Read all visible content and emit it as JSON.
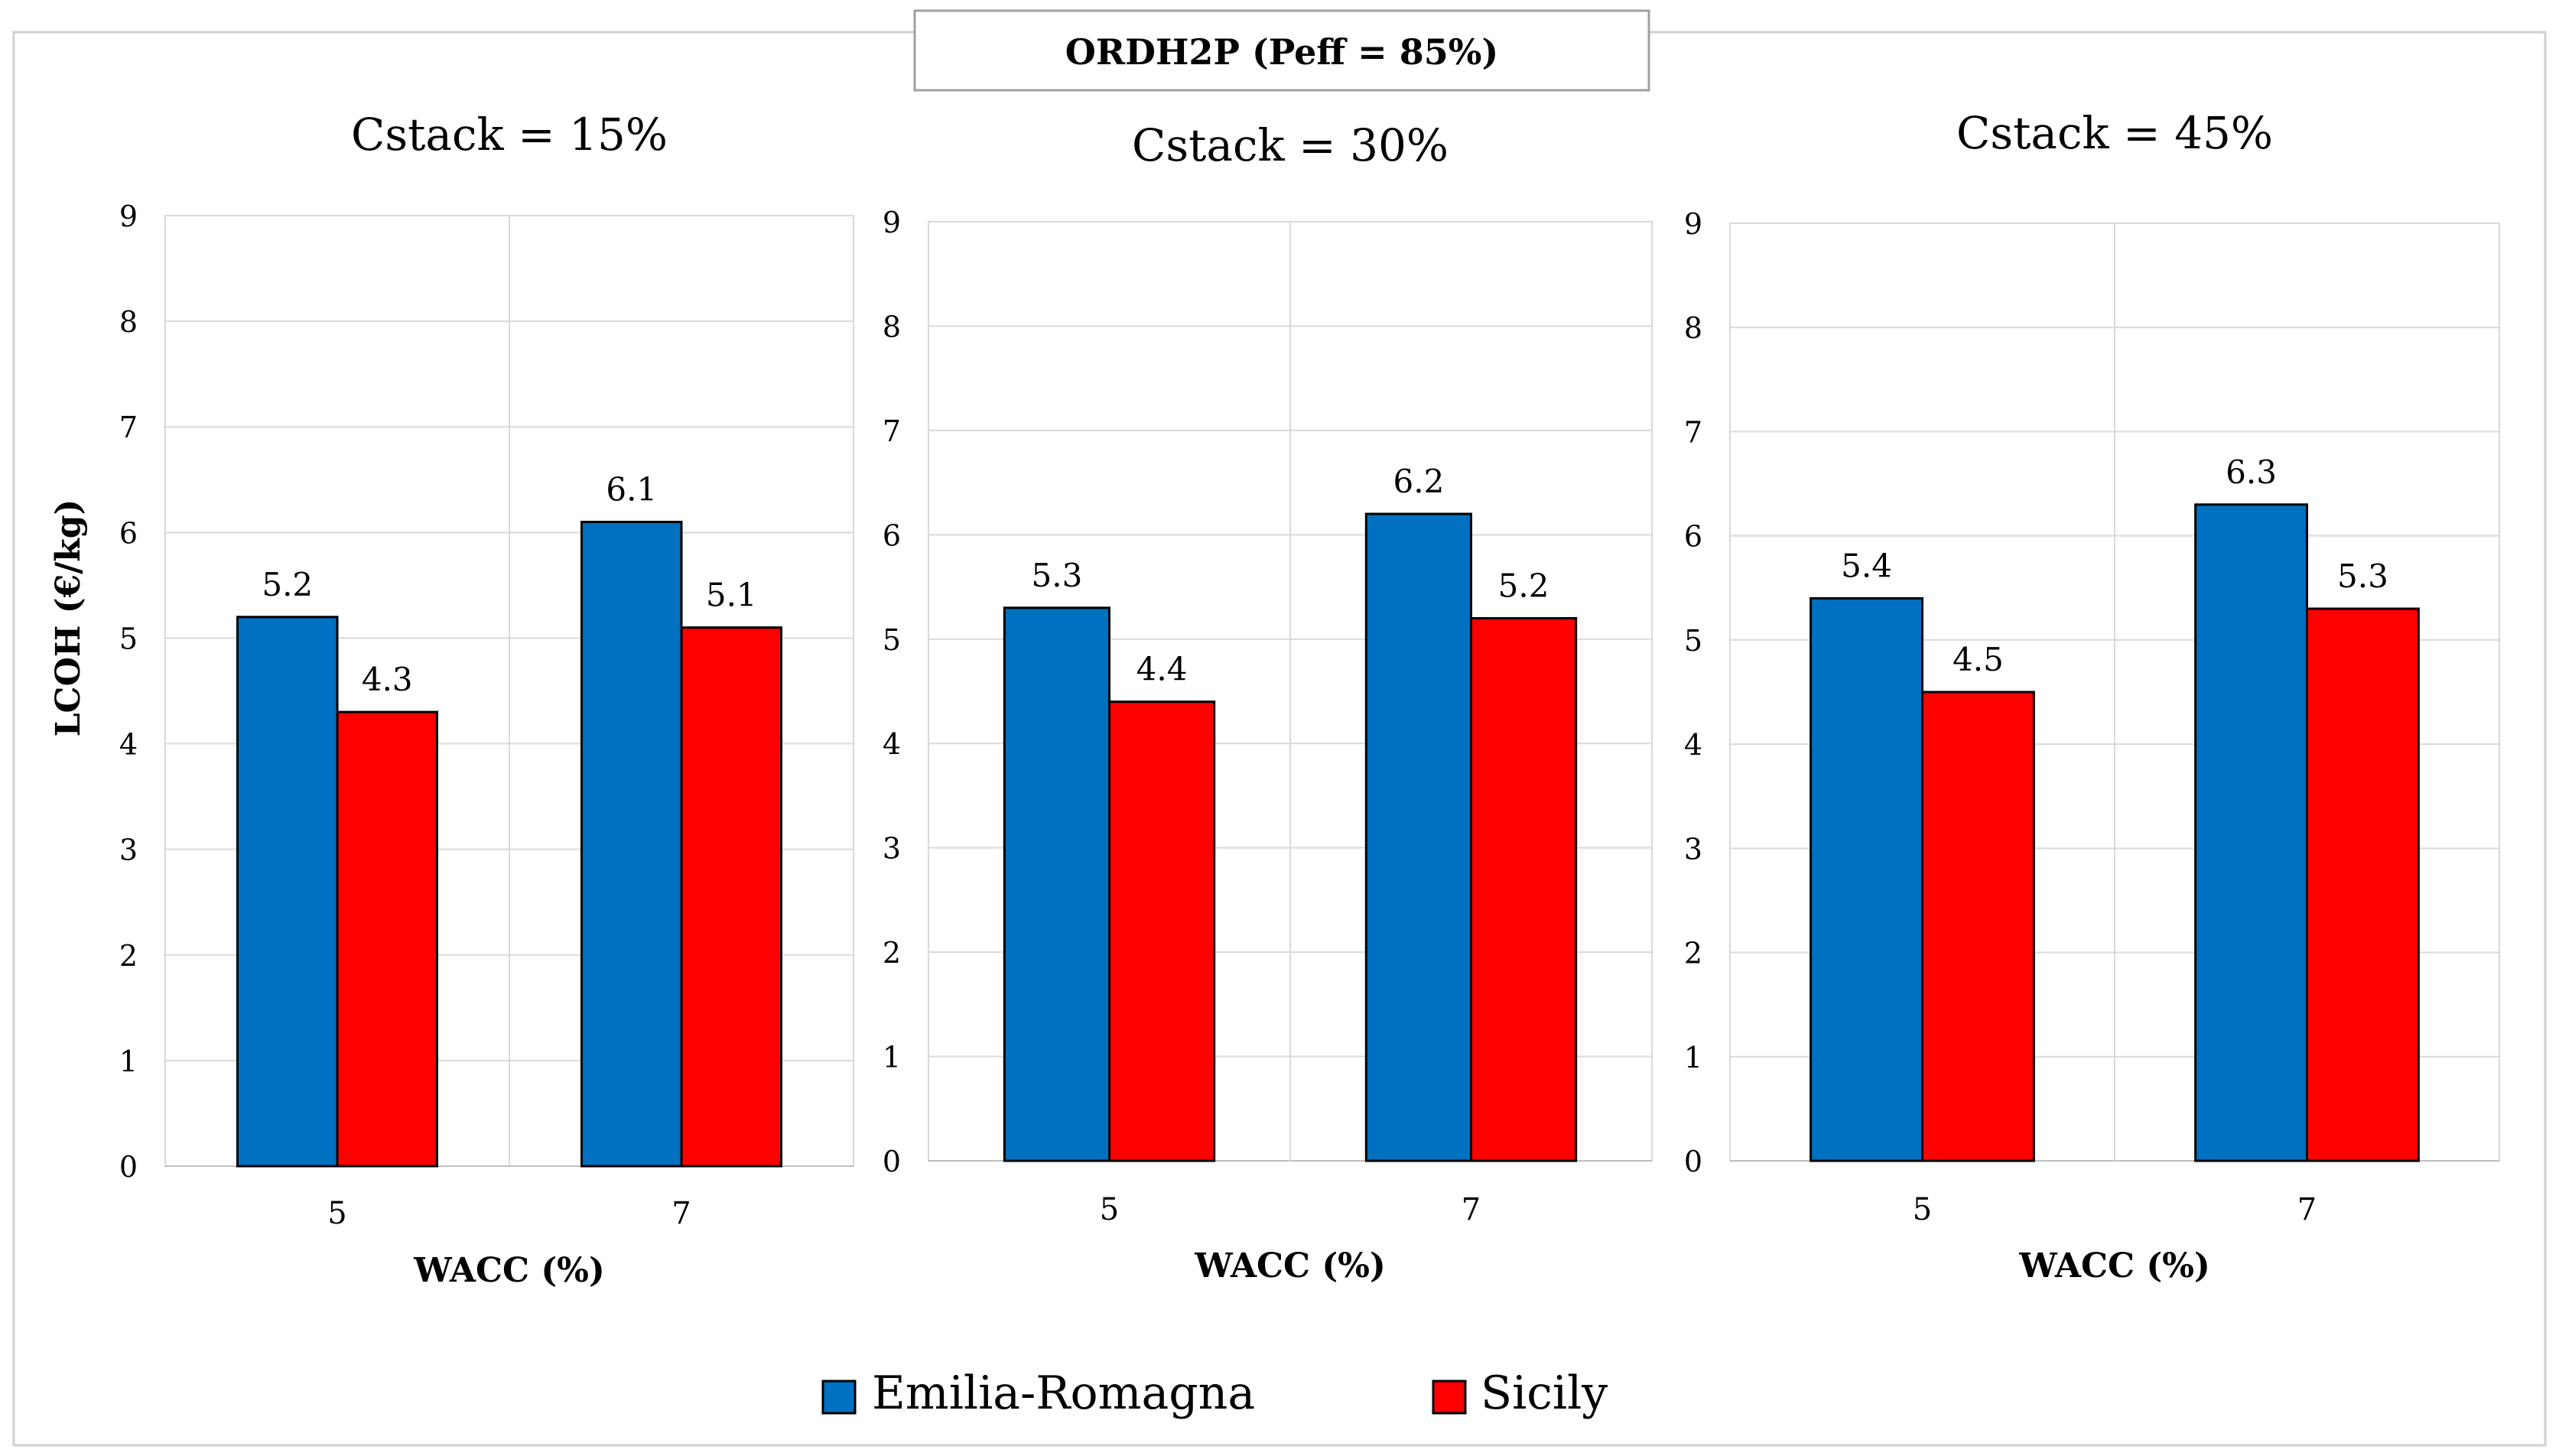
{
  "chart_data": {
    "type": "bar",
    "title": "ORDH2P (Peff = 85%)",
    "ylabel": "LCOH (€/kg)",
    "xlabel": "WACC (%)",
    "ylim": [
      0,
      9
    ],
    "yticks": [
      "0",
      "1",
      "2",
      "3",
      "4",
      "5",
      "6",
      "7",
      "8",
      "9"
    ],
    "legend": [
      {
        "name": "Emilia-Romagna",
        "color": "#0070C0"
      },
      {
        "name": "Sicily",
        "color": "#FF0000"
      }
    ],
    "panels": [
      {
        "title": "Cstack = 15%",
        "categories": [
          "5",
          "7"
        ],
        "series": [
          {
            "name": "Emilia-Romagna",
            "values": [
              5.2,
              6.1
            ],
            "labels": [
              "5.2",
              "6.1"
            ]
          },
          {
            "name": "Sicily",
            "values": [
              4.3,
              5.1
            ],
            "labels": [
              "4.3",
              "5.1"
            ]
          }
        ]
      },
      {
        "title": "Cstack = 30%",
        "categories": [
          "5",
          "7"
        ],
        "series": [
          {
            "name": "Emilia-Romagna",
            "values": [
              5.3,
              6.2
            ],
            "labels": [
              "5.3",
              "6.2"
            ]
          },
          {
            "name": "Sicily",
            "values": [
              4.4,
              5.2
            ],
            "labels": [
              "4.4",
              "5.2"
            ]
          }
        ]
      },
      {
        "title": "Cstack = 45%",
        "categories": [
          "5",
          "7"
        ],
        "series": [
          {
            "name": "Emilia-Romagna",
            "values": [
              5.4,
              6.3
            ],
            "labels": [
              "5.4",
              "6.3"
            ]
          },
          {
            "name": "Sicily",
            "values": [
              4.5,
              5.3
            ],
            "labels": [
              "4.5",
              "5.3"
            ]
          }
        ]
      }
    ]
  }
}
